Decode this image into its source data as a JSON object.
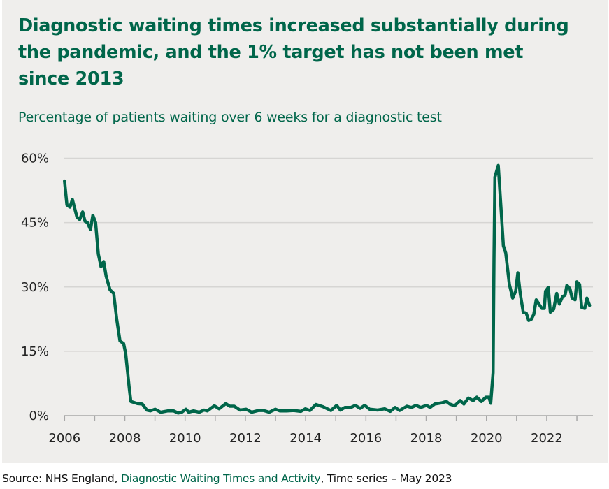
{
  "title": "Diagnostic waiting times increased substantially during the pandemic, and the 1% target has not been met since 2013",
  "subtitle": "Percentage of patients waiting over 6 weeks for a diagnostic test",
  "source": {
    "prefix": "Source: NHS England, ",
    "link_text": "Diagnostic Waiting Times and Activity",
    "suffix": ", Time series – May 2023"
  },
  "colors": {
    "line": "#00664a",
    "title": "#00664a",
    "background": "#efeeec",
    "grid": "#d6d5d3"
  },
  "chart_data": {
    "type": "line",
    "title": "Diagnostic waiting times increased substantially during the pandemic, and the 1% target has not been met since 2013",
    "subtitle": "Percentage of patients waiting over 6 weeks for a diagnostic test",
    "xlabel": "",
    "ylabel": "",
    "xlim": [
      2006,
      2023.5
    ],
    "ylim": [
      0,
      60
    ],
    "grid": "horizontal",
    "x_ticks": [
      "2006",
      "2008",
      "2010",
      "2012",
      "2014",
      "2016",
      "2018",
      "2020",
      "2022"
    ],
    "y_ticks": [
      "0%",
      "15%",
      "30%",
      "45%",
      "60%"
    ],
    "series": [
      {
        "points": [
          [
            2006.0,
            54.7
          ],
          [
            2006.08,
            49.1
          ],
          [
            2006.18,
            48.6
          ],
          [
            2006.26,
            50.4
          ],
          [
            2006.41,
            46.3
          ],
          [
            2006.5,
            45.7
          ],
          [
            2006.6,
            47.5
          ],
          [
            2006.68,
            45.3
          ],
          [
            2006.76,
            45.0
          ],
          [
            2006.86,
            43.4
          ],
          [
            2006.94,
            46.7
          ],
          [
            2007.03,
            45.0
          ],
          [
            2007.12,
            37.7
          ],
          [
            2007.21,
            34.7
          ],
          [
            2007.3,
            35.9
          ],
          [
            2007.38,
            32.5
          ],
          [
            2007.51,
            29.3
          ],
          [
            2007.63,
            28.5
          ],
          [
            2007.73,
            22.5
          ],
          [
            2007.84,
            17.4
          ],
          [
            2007.96,
            16.8
          ],
          [
            2008.03,
            14.4
          ],
          [
            2008.15,
            6.2
          ],
          [
            2008.2,
            3.3
          ],
          [
            2008.34,
            3.0
          ],
          [
            2008.42,
            2.8
          ],
          [
            2008.58,
            2.7
          ],
          [
            2008.73,
            1.3
          ],
          [
            2008.85,
            1.1
          ],
          [
            2009.0,
            1.5
          ],
          [
            2009.19,
            0.8
          ],
          [
            2009.43,
            1.1
          ],
          [
            2009.62,
            1.1
          ],
          [
            2009.77,
            0.6
          ],
          [
            2009.89,
            0.8
          ],
          [
            2010.03,
            1.5
          ],
          [
            2010.12,
            0.8
          ],
          [
            2010.28,
            1.1
          ],
          [
            2010.47,
            0.8
          ],
          [
            2010.63,
            1.3
          ],
          [
            2010.74,
            1.1
          ],
          [
            2010.97,
            2.3
          ],
          [
            2011.13,
            1.6
          ],
          [
            2011.35,
            2.8
          ],
          [
            2011.48,
            2.2
          ],
          [
            2011.63,
            2.2
          ],
          [
            2011.82,
            1.3
          ],
          [
            2012.02,
            1.5
          ],
          [
            2012.21,
            0.8
          ],
          [
            2012.44,
            1.2
          ],
          [
            2012.6,
            1.2
          ],
          [
            2012.79,
            0.8
          ],
          [
            2013.0,
            1.5
          ],
          [
            2013.14,
            1.1
          ],
          [
            2013.37,
            1.1
          ],
          [
            2013.6,
            1.2
          ],
          [
            2013.84,
            1.0
          ],
          [
            2013.99,
            1.6
          ],
          [
            2014.14,
            1.2
          ],
          [
            2014.34,
            2.6
          ],
          [
            2014.57,
            2.1
          ],
          [
            2014.84,
            1.2
          ],
          [
            2015.03,
            2.4
          ],
          [
            2015.15,
            1.3
          ],
          [
            2015.3,
            1.9
          ],
          [
            2015.5,
            1.9
          ],
          [
            2015.65,
            2.4
          ],
          [
            2015.81,
            1.7
          ],
          [
            2015.96,
            2.4
          ],
          [
            2016.12,
            1.5
          ],
          [
            2016.39,
            1.3
          ],
          [
            2016.62,
            1.6
          ],
          [
            2016.81,
            1.0
          ],
          [
            2016.97,
            1.9
          ],
          [
            2017.12,
            1.2
          ],
          [
            2017.36,
            2.2
          ],
          [
            2017.51,
            1.9
          ],
          [
            2017.66,
            2.4
          ],
          [
            2017.82,
            1.9
          ],
          [
            2018.01,
            2.4
          ],
          [
            2018.13,
            1.9
          ],
          [
            2018.28,
            2.7
          ],
          [
            2018.52,
            3.0
          ],
          [
            2018.67,
            3.3
          ],
          [
            2018.78,
            2.7
          ],
          [
            2018.94,
            2.3
          ],
          [
            2019.13,
            3.5
          ],
          [
            2019.25,
            2.7
          ],
          [
            2019.4,
            4.1
          ],
          [
            2019.56,
            3.5
          ],
          [
            2019.68,
            4.3
          ],
          [
            2019.83,
            3.3
          ],
          [
            2019.98,
            4.3
          ],
          [
            2020.08,
            4.3
          ],
          [
            2020.14,
            2.9
          ],
          [
            2020.22,
            10.0
          ],
          [
            2020.25,
            36.6
          ],
          [
            2020.28,
            55.6
          ],
          [
            2020.39,
            58.3
          ],
          [
            2020.49,
            47.4
          ],
          [
            2020.56,
            39.6
          ],
          [
            2020.64,
            37.9
          ],
          [
            2020.76,
            30.6
          ],
          [
            2020.87,
            27.4
          ],
          [
            2020.97,
            29.0
          ],
          [
            2021.04,
            33.3
          ],
          [
            2021.12,
            28.5
          ],
          [
            2021.22,
            24.1
          ],
          [
            2021.32,
            23.9
          ],
          [
            2021.4,
            22.2
          ],
          [
            2021.49,
            22.5
          ],
          [
            2021.57,
            23.6
          ],
          [
            2021.65,
            27.0
          ],
          [
            2021.76,
            25.8
          ],
          [
            2021.84,
            25.0
          ],
          [
            2021.92,
            25.0
          ],
          [
            2021.96,
            29.0
          ],
          [
            2022.05,
            29.9
          ],
          [
            2022.12,
            24.1
          ],
          [
            2022.23,
            24.8
          ],
          [
            2022.33,
            28.5
          ],
          [
            2022.42,
            26.0
          ],
          [
            2022.52,
            27.7
          ],
          [
            2022.61,
            28.1
          ],
          [
            2022.67,
            30.4
          ],
          [
            2022.77,
            29.6
          ],
          [
            2022.84,
            27.4
          ],
          [
            2022.94,
            27.0
          ],
          [
            2023.0,
            31.2
          ],
          [
            2023.09,
            30.6
          ],
          [
            2023.16,
            25.2
          ],
          [
            2023.26,
            25.0
          ],
          [
            2023.33,
            27.4
          ],
          [
            2023.42,
            25.7
          ]
        ]
      }
    ]
  }
}
